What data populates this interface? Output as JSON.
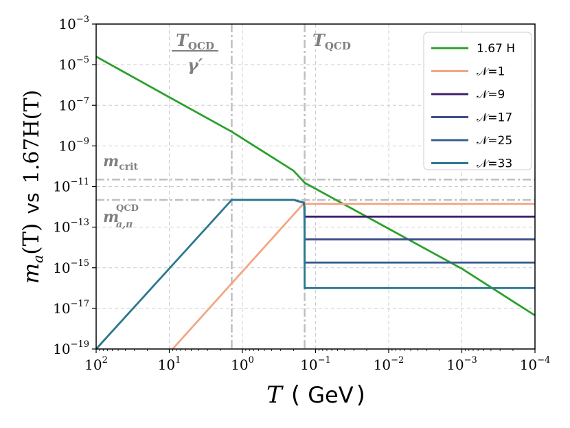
{
  "chart_data": {
    "type": "line",
    "title": "",
    "xlabel": {
      "var": "T",
      "paren_open": "(",
      "unit": "GeV",
      "paren_close": ")"
    },
    "ylabel": {
      "lhs": "m",
      "lhs_sub": "a",
      "lhs_arg": "(T)",
      "vs": "vs",
      "rhs": "1.67H(T)"
    },
    "x_scale": "log",
    "y_scale": "log",
    "x_direction": "decreasing",
    "xlim": [
      100,
      0.0001
    ],
    "ylim": [
      1e-19,
      0.001
    ],
    "x_ticks": [
      {
        "value": 100,
        "base": "10",
        "exp": "2"
      },
      {
        "value": 10,
        "base": "10",
        "exp": "1"
      },
      {
        "value": 1,
        "base": "10",
        "exp": "0"
      },
      {
        "value": 0.1,
        "base": "10",
        "exp": "−1"
      },
      {
        "value": 0.01,
        "base": "10",
        "exp": "−2"
      },
      {
        "value": 0.001,
        "base": "10",
        "exp": "−3"
      },
      {
        "value": 0.0001,
        "base": "10",
        "exp": "−4"
      }
    ],
    "y_ticks": [
      {
        "value": 1e-19,
        "base": "10",
        "exp": "−19"
      },
      {
        "value": 1e-17,
        "base": "10",
        "exp": "−17"
      },
      {
        "value": 1e-15,
        "base": "10",
        "exp": "−15"
      },
      {
        "value": 1e-13,
        "base": "10",
        "exp": "−13"
      },
      {
        "value": 1e-11,
        "base": "10",
        "exp": "−11"
      },
      {
        "value": 1e-09,
        "base": "10",
        "exp": "−9"
      },
      {
        "value": 1e-07,
        "base": "10",
        "exp": "−7"
      },
      {
        "value": 1e-05,
        "base": "10",
        "exp": "−5"
      },
      {
        "value": 0.001,
        "base": "10",
        "exp": "−3"
      }
    ],
    "grid": true,
    "legend_position": "top-right",
    "series": [
      {
        "name": "1.67 H",
        "color": "#2ca02c",
        "points": [
          [
            100,
            2.5e-05
          ],
          [
            10,
            2.5e-07
          ],
          [
            1.4,
            5e-09
          ],
          [
            0.2,
            6e-11
          ],
          [
            0.14,
            1.5e-11
          ],
          [
            0.001,
            9e-16
          ],
          [
            0.0001,
            4.5e-18
          ]
        ]
      },
      {
        "name": "𝒩=1",
        "color": "#f4a582",
        "points": [
          [
            9,
            1e-19
          ],
          [
            0.15,
            1.3e-12
          ],
          [
            0.145,
            1.4e-12
          ],
          [
            0.0001,
            1.4e-12
          ]
        ]
      },
      {
        "name": "𝒩=9",
        "color": "#3f1f69",
        "points": [
          [
            1.4,
            2.2e-12
          ],
          [
            0.2,
            2.2e-12
          ],
          [
            0.145,
            1.6e-12
          ],
          [
            0.142,
            1e-12
          ],
          [
            0.141,
            3.3e-13
          ],
          [
            0.0001,
            3.3e-13
          ]
        ]
      },
      {
        "name": "𝒩=17",
        "color": "#3d4b8a",
        "points": [
          [
            1.4,
            2.2e-12
          ],
          [
            0.2,
            2.2e-12
          ],
          [
            0.145,
            1.6e-12
          ],
          [
            0.142,
            1e-12
          ],
          [
            0.141,
            2.5e-14
          ],
          [
            0.0001,
            2.5e-14
          ]
        ]
      },
      {
        "name": "𝒩=25",
        "color": "#355f8d",
        "points": [
          [
            1.4,
            2.2e-12
          ],
          [
            0.2,
            2.2e-12
          ],
          [
            0.145,
            1.6e-12
          ],
          [
            0.142,
            1e-12
          ],
          [
            0.141,
            1.8e-15
          ],
          [
            0.0001,
            1.8e-15
          ]
        ]
      },
      {
        "name": "𝒩=33",
        "color": "#2a788e",
        "points": [
          [
            100,
            1e-19
          ],
          [
            1.4,
            2.2e-12
          ],
          [
            0.2,
            2.2e-12
          ],
          [
            0.145,
            1.6e-12
          ],
          [
            0.142,
            1e-12
          ],
          [
            0.141,
            1e-16
          ],
          [
            0.0001,
            1e-16
          ]
        ]
      }
    ],
    "reference_lines": [
      {
        "axis": "x",
        "value": 1.4,
        "style": "dashdot",
        "color": "#bfbfbf"
      },
      {
        "axis": "x",
        "value": 0.141,
        "style": "dashdot",
        "color": "#bfbfbf"
      },
      {
        "axis": "y",
        "value": 2.2e-11,
        "style": "dashdot",
        "color": "#bfbfbf"
      },
      {
        "axis": "y",
        "value": 2.2e-12,
        "style": "dashdot",
        "color": "#bfbfbf"
      }
    ],
    "annotations": {
      "tqcd_gamma": {
        "numerator": "T",
        "numerator_sub": "QCD",
        "denominator": "γ′"
      },
      "tqcd": {
        "text": "T",
        "sub": "QCD"
      },
      "mcrit": {
        "text": "m",
        "sub": "crit"
      },
      "maqcd": {
        "text": "m",
        "sub": "a,π",
        "sup": "QCD"
      }
    }
  }
}
